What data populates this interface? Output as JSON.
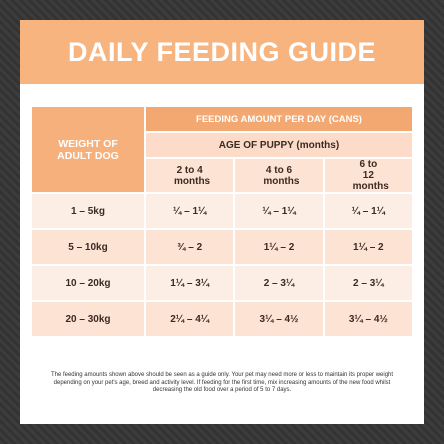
{
  "title": "DAILY FEEDING GUIDE",
  "table": {
    "row_header": "WEIGHT OF ADULT DOG",
    "group_header": "FEEDING AMOUNT PER DAY (CANS)",
    "subgroup_header": "AGE OF PUPPY (months)",
    "columns": [
      "2 to 4 months",
      "4 to 6 months",
      "6 to 12 months"
    ],
    "rows": [
      [
        "1 – 5kg",
        "¼ – 1¼",
        "¼ – 1¼",
        "¼ – 1¼"
      ],
      [
        "5 – 10kg",
        "¾ – 2",
        "1¼ – 2",
        "1¼ – 2"
      ],
      [
        "10 – 20kg",
        "1¼ – 3¼",
        "2 – 3¼",
        "2 – 3¼"
      ],
      [
        "20 – 30kg",
        "2¼ – 4¼",
        "3¼ – 4½",
        "3¼ – 4½"
      ]
    ]
  },
  "footnote": "The feeding amounts shown above should be seen as a guide only. Your pet may need more or less to maintain its proper weight depending on your pet's age, breed and activity level. If feeding for the first time, mix increasing amounts of the new food whilst decreasing the old food over a period of 5 to 7 days."
}
